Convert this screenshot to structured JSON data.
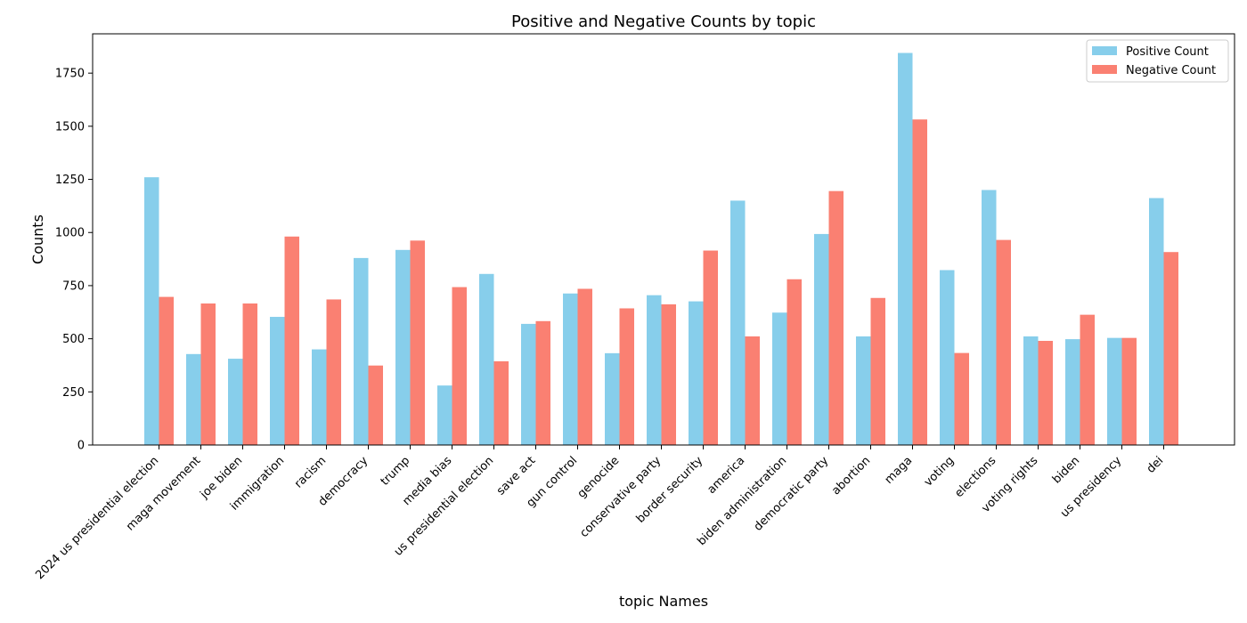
{
  "chart_data": {
    "type": "bar",
    "title": "Positive and Negative Counts by topic",
    "xlabel": "topic Names",
    "ylabel": "Counts",
    "ylim": [
      0,
      1935
    ],
    "yticks": [
      0,
      250,
      500,
      750,
      1000,
      1250,
      1500,
      1750
    ],
    "grid": false,
    "legend_position": "top-right",
    "categories": [
      "2024 us presidential election",
      "maga movement",
      "joe biden",
      "immigration",
      "racism",
      "democracy",
      "trump",
      "media bias",
      "us presidential election",
      "save act",
      "gun control",
      "genocide",
      "conservative party",
      "border security",
      "america",
      "biden administration",
      "democratic party",
      "abortion",
      "maga",
      "voting",
      "elections",
      "voting rights",
      "biden",
      "us presidency",
      "dei"
    ],
    "series": [
      {
        "name": "Positive Count",
        "color": "#87CEEB",
        "values": [
          1260,
          428,
          406,
          603,
          450,
          880,
          918,
          280,
          805,
          570,
          713,
          432,
          705,
          676,
          1150,
          623,
          993,
          511,
          1845,
          823,
          1200,
          511,
          498,
          504,
          1162
        ]
      },
      {
        "name": "Negative Count",
        "color": "#FA8072",
        "values": [
          697,
          666,
          666,
          981,
          685,
          374,
          962,
          743,
          394,
          583,
          735,
          643,
          662,
          915,
          511,
          780,
          1195,
          692,
          1532,
          433,
          965,
          490,
          613,
          504,
          908
        ]
      }
    ]
  }
}
